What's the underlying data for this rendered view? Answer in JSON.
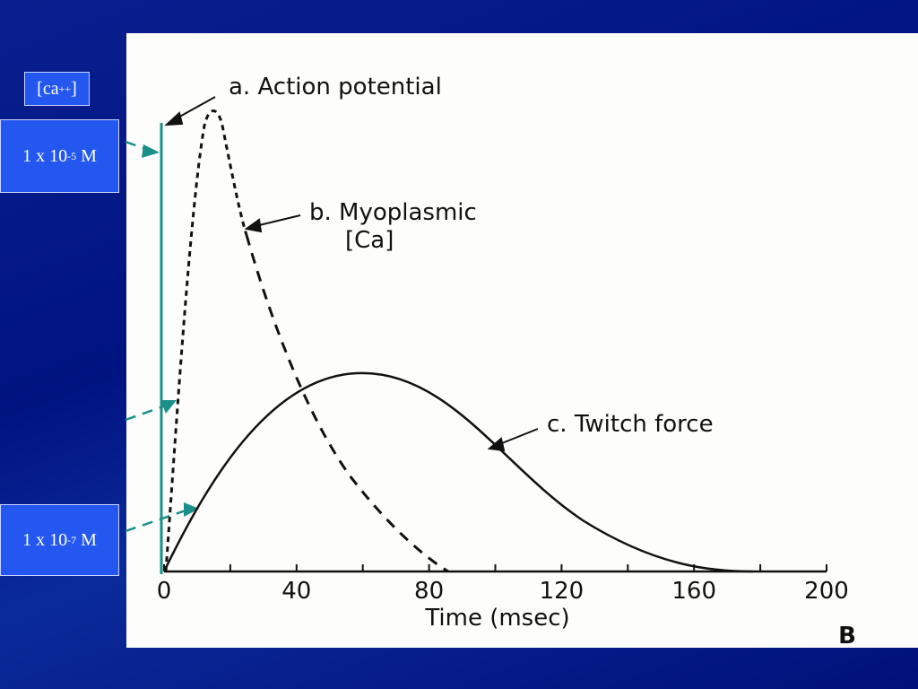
{
  "slide_labels": {
    "concentration_header": {
      "open": "[ca",
      "superscript": "++",
      "close": "]"
    },
    "high": {
      "base": "1 x 10",
      "exponent": "-5",
      "unit": " M"
    },
    "low": {
      "base": "1 x 10",
      "exponent": "-7",
      "unit": " M"
    }
  },
  "chart_data": {
    "type": "line",
    "xlabel": "Time (msec)",
    "xlim": [
      0,
      200
    ],
    "xticks": [
      0,
      40,
      80,
      120,
      160,
      200
    ],
    "annotations": [
      "a. Action potential",
      "b. Myoplasmic",
      "[Ca]",
      "c. Twitch force"
    ],
    "panel_label": "B"
  }
}
